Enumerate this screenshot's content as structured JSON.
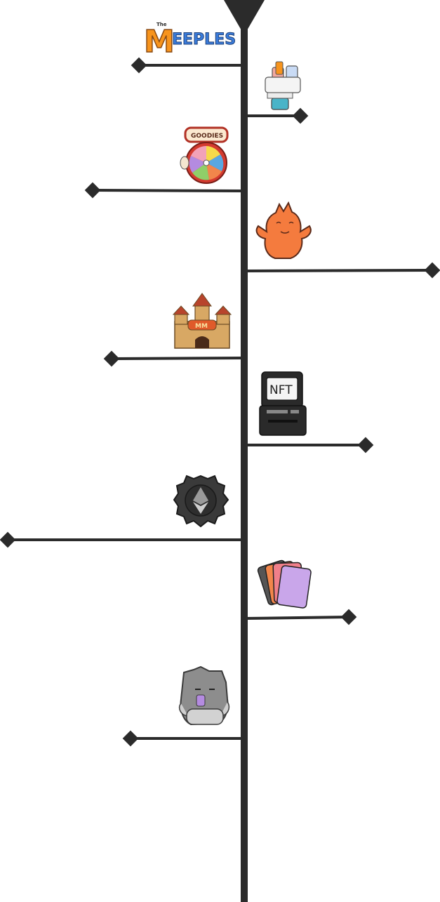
{
  "logo": {
    "small_text": "The",
    "initial": "M",
    "rest": "EEPLES"
  },
  "milestones": [
    {
      "icon": "meeples-logo-icon"
    },
    {
      "icon": "podium-trophy-icon"
    },
    {
      "icon": "goodies-wheel-icon",
      "badge": "GOODIES"
    },
    {
      "icon": "orange-meeple-icon"
    },
    {
      "icon": "castle-icon",
      "badge": "MM"
    },
    {
      "icon": "nft-machine-icon",
      "screen_text": "NFT"
    },
    {
      "icon": "ethereum-gear-icon"
    },
    {
      "icon": "card-deck-icon"
    },
    {
      "icon": "grey-meeple-icon"
    }
  ],
  "colors": {
    "line": "#2b2b2b",
    "logo_orange": "#f7941d",
    "logo_blue": "#3b7ddd",
    "meeple_orange": "#f47b3e",
    "goodies_red": "#d43a2f",
    "castle_tan": "#d8a864",
    "card_purple": "#c9a6ea"
  }
}
